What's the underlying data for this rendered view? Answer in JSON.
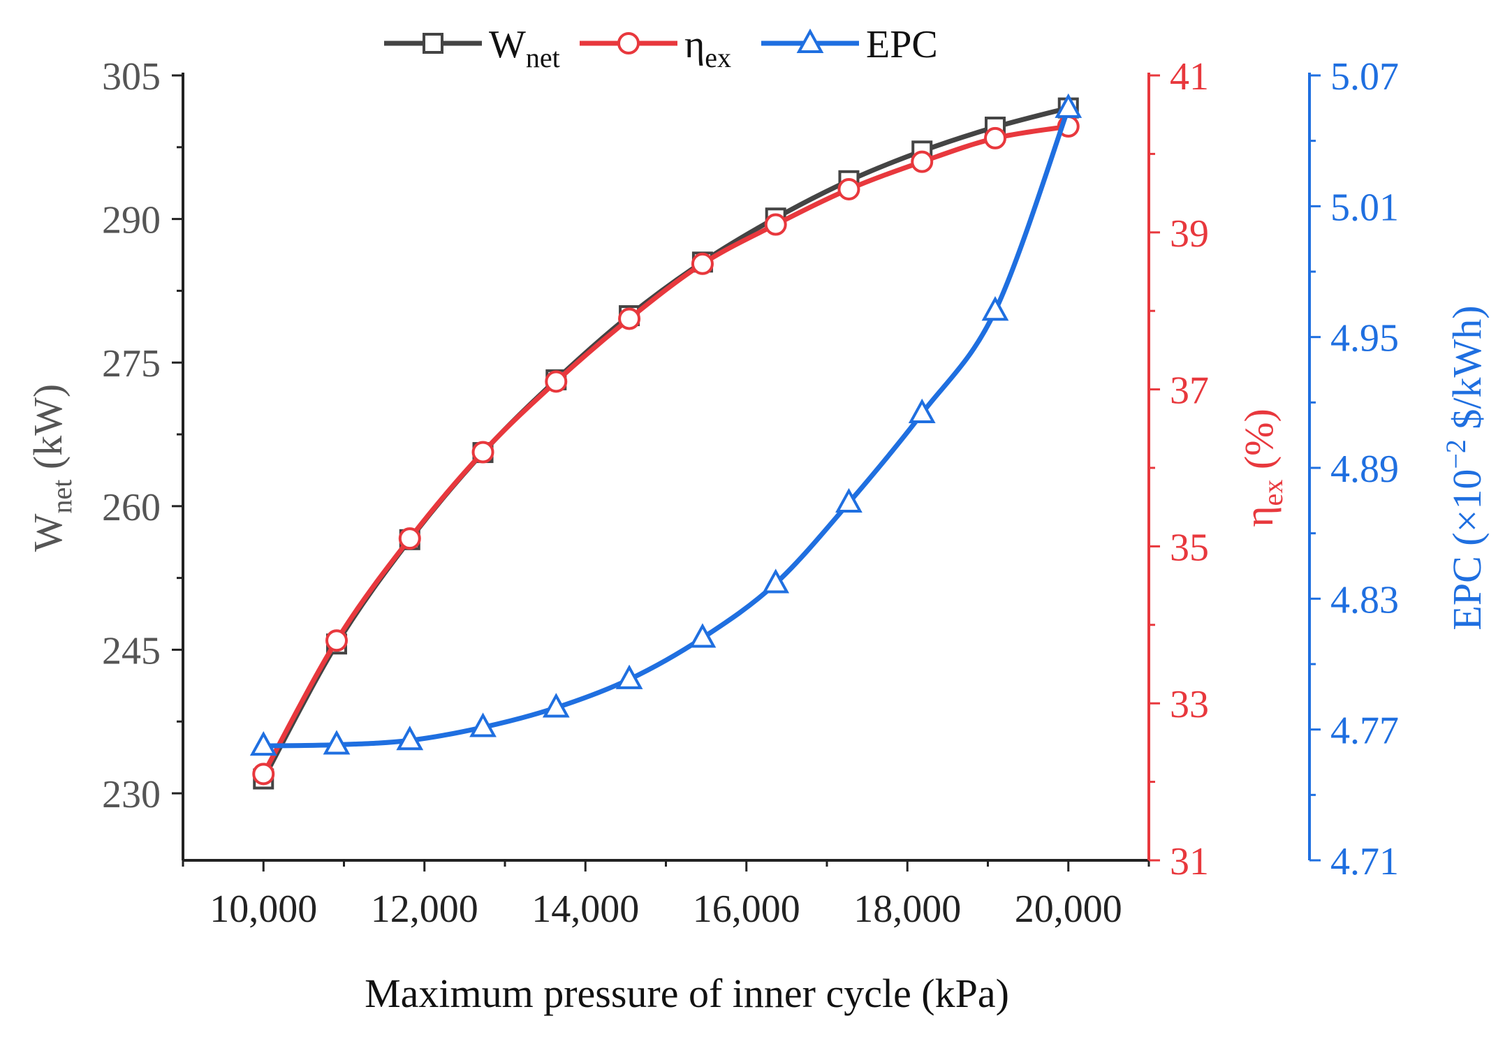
{
  "chart_data": {
    "type": "line",
    "xlabel": "Maximum pressure of inner cycle (kPa)",
    "x_ticks": [
      "10,000",
      "12,000",
      "14,000",
      "16,000",
      "18,000",
      "20,000"
    ],
    "x_tick_values": [
      10000,
      12000,
      14000,
      16000,
      18000,
      20000
    ],
    "xlim": [
      9000,
      21000
    ],
    "x": [
      10000,
      10909,
      11818,
      12727,
      13636,
      14545,
      15455,
      16364,
      17273,
      18182,
      19091,
      20000
    ],
    "axes": {
      "left": {
        "label_main": "W",
        "label_sub": "net",
        "label_rest": " (kW)",
        "ylim": [
          223,
          305
        ],
        "ticks": [
          "230",
          "245",
          "260",
          "275",
          "290",
          "305"
        ],
        "tick_values": [
          230,
          245,
          260,
          275,
          290,
          305
        ],
        "color": "#555555"
      },
      "right1": {
        "label_main": "η",
        "label_sub": "ex",
        "label_rest": " (%)",
        "ylim": [
          31,
          41
        ],
        "ticks": [
          "31",
          "33",
          "35",
          "37",
          "39",
          "41"
        ],
        "tick_values": [
          31,
          33,
          35,
          37,
          39,
          41
        ],
        "color": "#e8383d"
      },
      "right2": {
        "label": "EPC (×10",
        "label_sup": "−2",
        "label_rest": " $/kWh)",
        "ylim": [
          4.71,
          5.07
        ],
        "ticks": [
          "4.71",
          "4.77",
          "4.83",
          "4.89",
          "4.95",
          "5.01",
          "5.07"
        ],
        "tick_values": [
          4.71,
          4.77,
          4.83,
          4.89,
          4.95,
          5.01,
          5.07
        ],
        "color": "#1f6fe0"
      }
    },
    "series": [
      {
        "name": "Wnet",
        "legend_main": "W",
        "legend_sub": "net",
        "axis": "left",
        "marker": "square",
        "color": "#444444",
        "values": [
          231.5,
          245.6,
          256.5,
          265.6,
          273.2,
          279.9,
          285.5,
          290.1,
          294.0,
          297.1,
          299.6,
          301.6
        ]
      },
      {
        "name": "ηex",
        "legend_main": "η",
        "legend_sub": "ex",
        "axis": "right1",
        "marker": "circle",
        "color": "#e8383d",
        "values": [
          32.1,
          33.8,
          35.1,
          36.2,
          37.1,
          37.9,
          38.6,
          39.1,
          39.55,
          39.9,
          40.2,
          40.35
        ]
      },
      {
        "name": "EPC",
        "legend_main": "EPC",
        "legend_sub": "",
        "axis": "right2",
        "marker": "triangle",
        "color": "#1f6fe0",
        "values": [
          4.7625,
          4.763,
          4.765,
          4.771,
          4.78,
          4.793,
          4.812,
          4.837,
          4.874,
          4.915,
          4.962,
          5.055
        ]
      }
    ]
  }
}
